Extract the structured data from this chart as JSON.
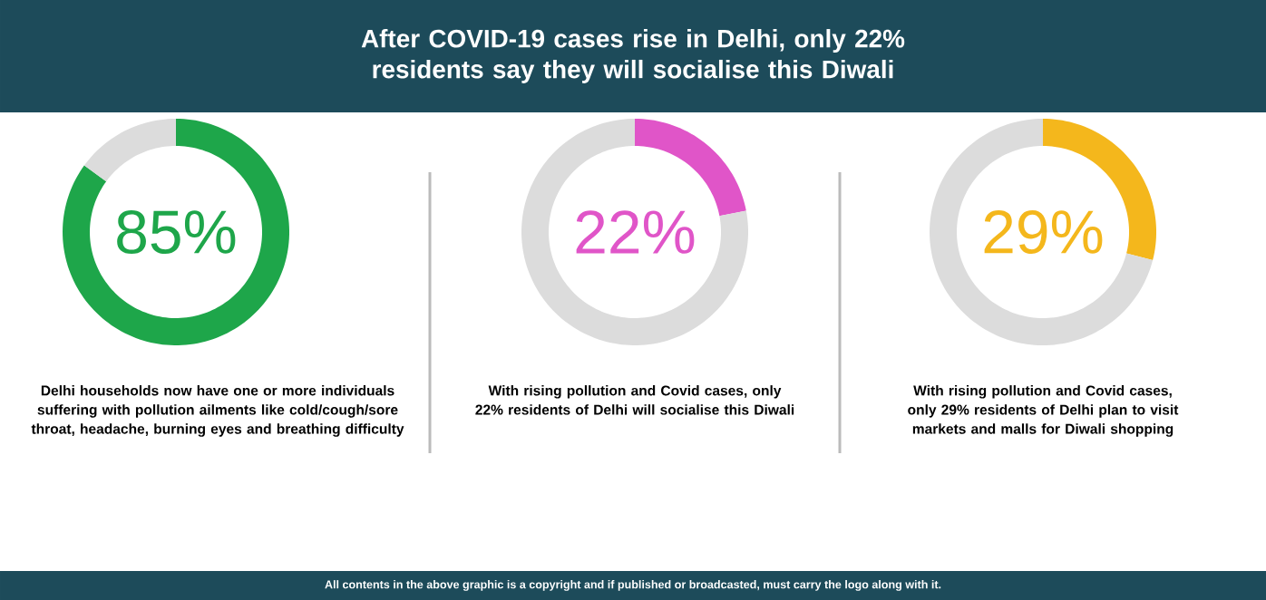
{
  "chart_data": [
    {
      "type": "donut",
      "categories": [
        null,
        null
      ],
      "values": [
        85,
        15
      ],
      "colors": [
        "#1ea64a",
        "#dcdcdc"
      ],
      "value_labels": [
        "85%",
        null
      ],
      "annotations": [
        "Delhi households now have one or more individuals suffering with pollution ailments like cold/cough/sore throat, headache, burning eyes and breathing difficulty"
      ]
    },
    {
      "type": "donut",
      "title": "After COVID-19 cases rise in Delhi, only 22% residents say they will socialise this Diwali",
      "categories": [
        null,
        null
      ],
      "values": [
        22,
        78
      ],
      "colors": [
        "#e055c8",
        "#dcdcdc"
      ],
      "value_labels": [
        "22%",
        null
      ],
      "annotations": [
        "With rising pollution and Covid cases, only 22% residents of Delhi will socialise this Diwali",
        "All contents in the above graphic is a copyright and if published or broadcasted, must carry the logo along with it."
      ]
    },
    {
      "type": "donut",
      "categories": [
        null,
        null
      ],
      "values": [
        29,
        71
      ],
      "colors": [
        "#f4b71c",
        "#dcdcdc"
      ],
      "value_labels": [
        "29%",
        null
      ],
      "annotations": [
        "With rising pollution and Covid cases, only 29% residents of Delhi plan to visit markets and malls for Diwali shopping"
      ]
    }
  ]
}
